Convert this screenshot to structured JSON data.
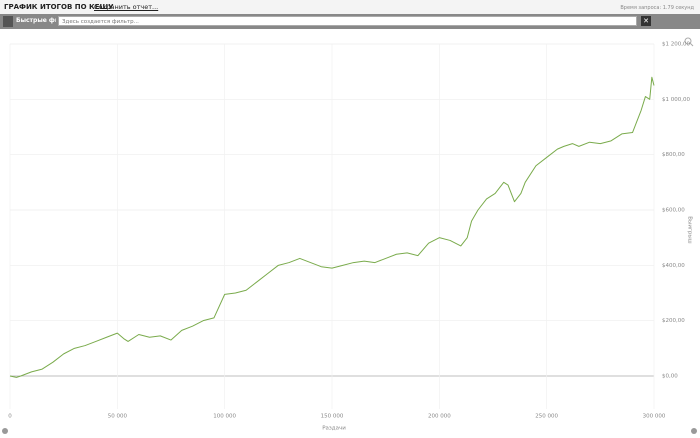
{
  "header": {
    "title": "ГРАФИК ИТОГОВ ПО КЕШУ",
    "save_link": "Сохранить отчет...",
    "query_time": "Время запроса: 1.79 секунд"
  },
  "filter": {
    "label": "Быстрые фильтры",
    "placeholder": "Здесь создается фильтр..."
  },
  "chart_data": {
    "type": "line",
    "x_label": "Раздачи",
    "y_label": "Выигрыш",
    "color": "#7aab4c",
    "grid": true,
    "x": [
      0,
      3000,
      5000,
      10000,
      15000,
      20000,
      25000,
      30000,
      35000,
      40000,
      45000,
      50000,
      53000,
      55000,
      60000,
      65000,
      70000,
      75000,
      80000,
      85000,
      90000,
      95000,
      100000,
      105000,
      110000,
      115000,
      120000,
      125000,
      130000,
      135000,
      140000,
      145000,
      150000,
      155000,
      160000,
      165000,
      170000,
      175000,
      180000,
      185000,
      190000,
      195000,
      200000,
      205000,
      210000,
      213000,
      215000,
      218000,
      222000,
      226000,
      230000,
      232000,
      235000,
      238000,
      240000,
      245000,
      250000,
      255000,
      258000,
      262000,
      265000,
      270000,
      275000,
      280000,
      285000,
      290000,
      292000,
      294000,
      296000,
      298000,
      299000,
      300000
    ],
    "values": [
      0,
      -5,
      0,
      15,
      25,
      50,
      80,
      100,
      110,
      125,
      140,
      155,
      135,
      125,
      150,
      140,
      145,
      130,
      165,
      180,
      200,
      210,
      295,
      300,
      310,
      340,
      370,
      400,
      410,
      425,
      410,
      395,
      390,
      400,
      410,
      415,
      410,
      425,
      440,
      445,
      435,
      480,
      500,
      490,
      470,
      500,
      560,
      600,
      640,
      660,
      700,
      690,
      630,
      660,
      700,
      760,
      790,
      820,
      830,
      840,
      830,
      845,
      840,
      850,
      875,
      880,
      920,
      960,
      1010,
      1000,
      1080,
      1050
    ],
    "xlim": [
      0,
      300000
    ],
    "ylim": [
      0,
      1200
    ],
    "xticks": [
      0,
      {
        "value": 50000,
        "label": "50 000"
      },
      {
        "value": 100000,
        "label": "100 000"
      },
      {
        "value": 150000,
        "label": "150 000"
      },
      {
        "value": 200000,
        "label": "200 000"
      },
      {
        "value": 250000,
        "label": "250 000"
      },
      {
        "value": 300000,
        "label": "300 000"
      }
    ],
    "yticks": [
      {
        "value": 0,
        "label": "$0,00"
      },
      {
        "value": 200,
        "label": "$200,00"
      },
      {
        "value": 400,
        "label": "$400,00"
      },
      {
        "value": 600,
        "label": "$600,00"
      },
      {
        "value": 800,
        "label": "$800,00"
      },
      {
        "value": 1000,
        "label": "$1 000,00"
      },
      {
        "value": 1200,
        "label": "$1 200,00"
      }
    ]
  }
}
